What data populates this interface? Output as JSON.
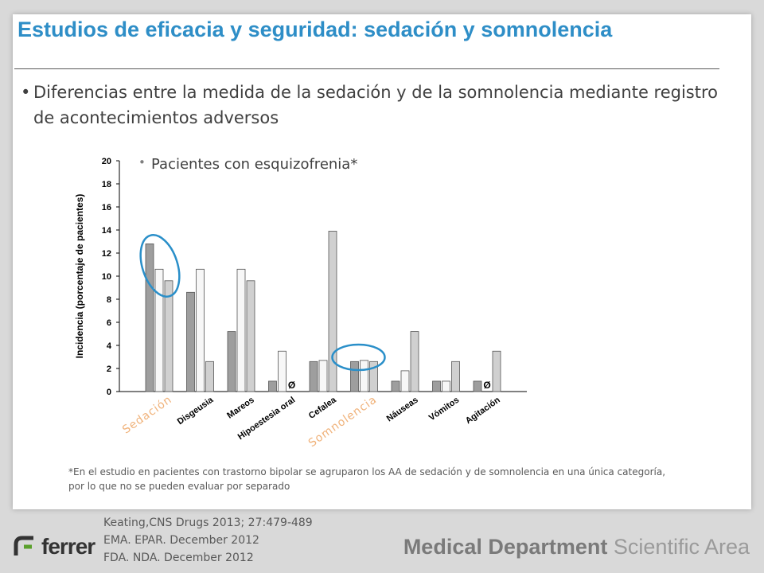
{
  "slide": {
    "title": "Estudios de eficacia y seguridad: sedación y somnolencia",
    "bullet_main": "Diferencias entre la medida de la sedación y de la somnolencia mediante registro de acontecimientos adversos",
    "bullet_sub": "Pacientes con esquizofrenia*",
    "footnote": "*En el estudio en pacientes con trastorno bipolar se agruparon los AA de sedación y de somnolencia en una única categoría, por lo que no se pueden evaluar por separado",
    "references": [
      "Keating,CNS Drugs 2013; 27:479-489",
      "EMA. EPAR.  December 2012",
      "FDA. NDA.  December 2012"
    ],
    "logo_text": "ferrer",
    "department_bold": "Medical Department",
    "department_light": "Scientific Area"
  },
  "colors": {
    "title": "#2e8ec7",
    "bar_dark": "#9e9e9e",
    "bar_white": "#f7f7f7",
    "bar_light": "#d0d0d0",
    "highlight_ellipse": "#2a8fc9",
    "highlight_label": "#f0b27a",
    "logo_green": "#5aa02c"
  },
  "chart_data": {
    "type": "bar",
    "ylabel": "Incidencia (porcentaje de pacientes)",
    "ylim": [
      0,
      20
    ],
    "yticks": [
      0,
      2,
      4,
      6,
      8,
      10,
      12,
      14,
      16,
      18,
      20
    ],
    "categories": [
      "Sedación",
      "Disgeusia",
      "Mareos",
      "Hipoestesia oral",
      "Cefalea",
      "Somnolencia",
      "Náuseas",
      "Vómitos",
      "Agitación"
    ],
    "series": [
      {
        "values": [
          12.8,
          8.6,
          5.2,
          0.9,
          2.6,
          2.6,
          0.9,
          0.9,
          0.9
        ]
      },
      {
        "values": [
          10.6,
          10.6,
          10.6,
          3.5,
          2.7,
          2.7,
          1.8,
          0.9,
          null
        ]
      },
      {
        "values": [
          9.6,
          2.6,
          9.6,
          null,
          13.9,
          2.6,
          5.2,
          2.6,
          3.5
        ]
      }
    ],
    "zero_marker": "Ø",
    "highlighted_categories": [
      "Sedación",
      "Somnolencia"
    ]
  }
}
